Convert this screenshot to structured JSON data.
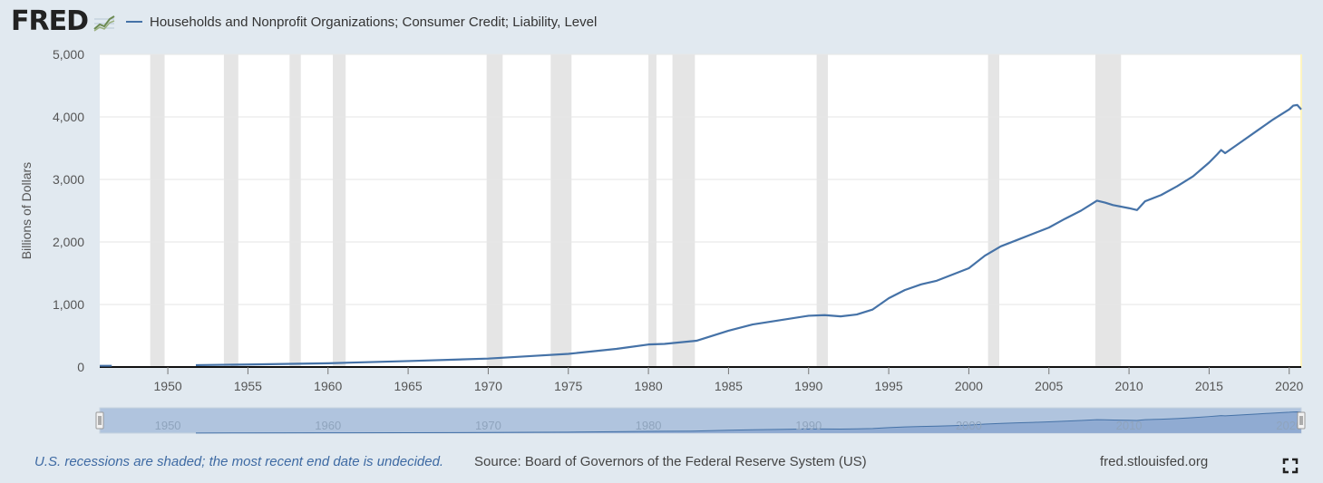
{
  "header": {
    "logo_text": "FRED",
    "legend_label": "Households and Nonprofit Organizations; Consumer Credit; Liability, Level",
    "series_color": "#4572a7"
  },
  "footer": {
    "note": "U.S. recessions are shaded; the most recent end date is undecided.",
    "source": "Source: Board of Governors of the Federal Reserve System (US)",
    "site": "fred.stlouisfed.org",
    "fullscreen_icon": "expand-icon"
  },
  "chart_data": {
    "type": "line",
    "ylabel": "Billions of Dollars",
    "xlim": [
      1945.75,
      2020.75
    ],
    "ylim": [
      0,
      5000
    ],
    "y_ticks": [
      "0",
      "1,000",
      "2,000",
      "3,000",
      "4,000",
      "5,000"
    ],
    "y_tick_values": [
      0,
      1000,
      2000,
      3000,
      4000,
      5000
    ],
    "x_ticks": [
      "1950",
      "1955",
      "1960",
      "1965",
      "1970",
      "1975",
      "1980",
      "1985",
      "1990",
      "1995",
      "2000",
      "2005",
      "2010",
      "2015",
      "2020"
    ],
    "x_tick_values": [
      1950,
      1955,
      1960,
      1965,
      1970,
      1975,
      1980,
      1985,
      1990,
      1995,
      2000,
      2005,
      2010,
      2015,
      2020
    ],
    "grid": true,
    "recession_shading_color": "#e5e5e5",
    "recessions": [
      [
        1948.9,
        1949.8
      ],
      [
        1953.5,
        1954.4
      ],
      [
        1957.6,
        1958.3
      ],
      [
        1960.3,
        1961.1
      ],
      [
        1969.9,
        1970.9
      ],
      [
        1973.9,
        1975.2
      ],
      [
        1980.0,
        1980.5
      ],
      [
        1981.5,
        1982.9
      ],
      [
        1990.5,
        1991.2
      ],
      [
        2001.2,
        2001.9
      ],
      [
        2007.9,
        2009.5
      ]
    ],
    "series": [
      {
        "name": "Households and Nonprofit Organizations; Consumer Credit; Liability, Level",
        "x": [
          1945.75,
          1946.5,
          1951.75,
          1955,
          1960,
          1965,
          1970,
          1973,
          1975,
          1978,
          1980,
          1981,
          1983,
          1985,
          1986.5,
          1988,
          1990,
          1991,
          1992,
          1993,
          1994,
          1995,
          1996,
          1997,
          1998,
          1999,
          2000,
          2001,
          2002,
          2003,
          2004,
          2005,
          2006,
          2007,
          2008,
          2008.5,
          2009,
          2010,
          2010.5,
          2010.75,
          2011,
          2012,
          2013,
          2014,
          2015,
          2015.5,
          2015.75,
          2016,
          2017,
          2018,
          2019,
          2020,
          2020.25,
          2020.5,
          2020.75
        ],
        "values": [
          20,
          20,
          30,
          40,
          60,
          95,
          135,
          180,
          210,
          290,
          360,
          370,
          420,
          580,
          680,
          740,
          820,
          830,
          810,
          840,
          920,
          1100,
          1230,
          1320,
          1380,
          1480,
          1580,
          1780,
          1930,
          2030,
          2130,
          2230,
          2370,
          2500,
          2660,
          2630,
          2590,
          2540,
          2510,
          2580,
          2650,
          2750,
          2890,
          3050,
          3270,
          3400,
          3470,
          3420,
          3600,
          3780,
          3960,
          4120,
          4180,
          4190,
          4120
        ]
      }
    ]
  },
  "navigator": {
    "labels": [
      "1950",
      "1960",
      "1970",
      "1980",
      "1990",
      "2000",
      "2010",
      "2020"
    ],
    "label_values": [
      1950,
      1960,
      1970,
      1980,
      1990,
      2000,
      2010,
      2020
    ],
    "ylim": [
      0,
      5000
    ]
  }
}
